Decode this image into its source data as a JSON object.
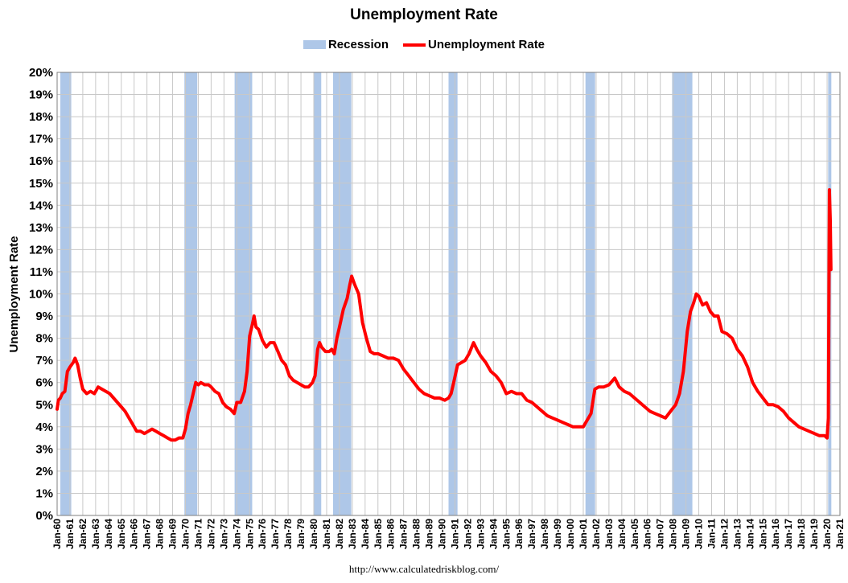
{
  "chart_data": {
    "type": "line",
    "title": "Unemployment Rate",
    "ylabel": "Unemployment Rate",
    "xlabel": "",
    "ylim": [
      0,
      20
    ],
    "y_tick_labels": [
      "0%",
      "1%",
      "2%",
      "3%",
      "4%",
      "5%",
      "6%",
      "7%",
      "8%",
      "9%",
      "10%",
      "11%",
      "12%",
      "13%",
      "14%",
      "15%",
      "16%",
      "17%",
      "18%",
      "19%",
      "20%"
    ],
    "x_range_years": [
      1960,
      2021
    ],
    "x_tick_labels": [
      "Jan-60",
      "Jan-61",
      "Jan-62",
      "Jan-63",
      "Jan-64",
      "Jan-65",
      "Jan-66",
      "Jan-67",
      "Jan-68",
      "Jan-69",
      "Jan-70",
      "Jan-71",
      "Jan-72",
      "Jan-73",
      "Jan-74",
      "Jan-75",
      "Jan-76",
      "Jan-77",
      "Jan-78",
      "Jan-79",
      "Jan-80",
      "Jan-81",
      "Jan-82",
      "Jan-83",
      "Jan-84",
      "Jan-85",
      "Jan-86",
      "Jan-87",
      "Jan-88",
      "Jan-89",
      "Jan-90",
      "Jan-91",
      "Jan-92",
      "Jan-93",
      "Jan-94",
      "Jan-95",
      "Jan-96",
      "Jan-97",
      "Jan-98",
      "Jan-99",
      "Jan-00",
      "Jan-01",
      "Jan-02",
      "Jan-03",
      "Jan-04",
      "Jan-05",
      "Jan-06",
      "Jan-07",
      "Jan-08",
      "Jan-09",
      "Jan-10",
      "Jan-11",
      "Jan-12",
      "Jan-13",
      "Jan-14",
      "Jan-15",
      "Jan-16",
      "Jan-17",
      "Jan-18",
      "Jan-19",
      "Jan-20",
      "Jan-21"
    ],
    "grid": true,
    "legend_position": "top-center",
    "legend": [
      "Recession",
      "Unemployment Rate"
    ],
    "colors": {
      "recession": "#aec7e8",
      "line": "#ff0000",
      "grid": "#c8c8c8",
      "plot_border": "#7f7f7f"
    },
    "recessions": [
      [
        1960.25,
        1961.1
      ],
      [
        1969.92,
        1970.92
      ],
      [
        1973.83,
        1975.2
      ],
      [
        1980.0,
        1980.58
      ],
      [
        1981.5,
        1982.92
      ],
      [
        1990.5,
        1991.2
      ],
      [
        2001.17,
        2001.92
      ],
      [
        2007.92,
        2009.5
      ],
      [
        2020.08,
        2020.33
      ]
    ],
    "series": [
      {
        "name": "Unemployment Rate",
        "x": [
          1960.0,
          1960.1,
          1960.25,
          1960.4,
          1960.6,
          1960.8,
          1961.0,
          1961.25,
          1961.4,
          1961.6,
          1961.8,
          1962.0,
          1962.3,
          1962.6,
          1962.9,
          1963.2,
          1963.5,
          1963.8,
          1964.1,
          1964.4,
          1964.7,
          1965.0,
          1965.3,
          1965.6,
          1965.9,
          1966.2,
          1966.5,
          1966.8,
          1967.1,
          1967.4,
          1967.7,
          1968.0,
          1968.3,
          1968.6,
          1968.9,
          1969.2,
          1969.5,
          1969.8,
          1970.0,
          1970.2,
          1970.4,
          1970.6,
          1970.8,
          1971.0,
          1971.2,
          1971.5,
          1971.8,
          1972.0,
          1972.3,
          1972.6,
          1972.9,
          1973.2,
          1973.5,
          1973.8,
          1974.0,
          1974.3,
          1974.6,
          1974.8,
          1975.0,
          1975.2,
          1975.35,
          1975.5,
          1975.7,
          1976.0,
          1976.3,
          1976.6,
          1976.9,
          1977.2,
          1977.5,
          1977.8,
          1978.1,
          1978.4,
          1978.7,
          1979.0,
          1979.3,
          1979.6,
          1979.9,
          1980.1,
          1980.3,
          1980.45,
          1980.6,
          1980.9,
          1981.2,
          1981.4,
          1981.6,
          1981.8,
          1982.0,
          1982.3,
          1982.6,
          1982.8,
          1982.95,
          1983.2,
          1983.5,
          1983.8,
          1984.1,
          1984.4,
          1984.7,
          1985.0,
          1985.4,
          1985.8,
          1986.2,
          1986.6,
          1987.0,
          1987.4,
          1987.8,
          1988.2,
          1988.6,
          1989.0,
          1989.4,
          1989.8,
          1990.2,
          1990.5,
          1990.7,
          1990.9,
          1991.2,
          1991.5,
          1991.8,
          1992.1,
          1992.45,
          1992.7,
          1993.0,
          1993.4,
          1993.8,
          1994.2,
          1994.6,
          1995.0,
          1995.4,
          1995.8,
          1996.2,
          1996.6,
          1997.0,
          1997.4,
          1997.8,
          1998.2,
          1998.6,
          1999.0,
          1999.4,
          1999.8,
          2000.2,
          2000.6,
          2001.0,
          2001.3,
          2001.6,
          2001.9,
          2002.2,
          2002.6,
          2003.0,
          2003.45,
          2003.8,
          2004.2,
          2004.6,
          2005.0,
          2005.4,
          2005.8,
          2006.2,
          2006.6,
          2007.0,
          2007.4,
          2007.8,
          2008.2,
          2008.5,
          2008.8,
          2009.1,
          2009.35,
          2009.6,
          2009.8,
          2010.0,
          2010.3,
          2010.6,
          2010.9,
          2011.2,
          2011.5,
          2011.8,
          2012.2,
          2012.6,
          2013.0,
          2013.4,
          2013.8,
          2014.2,
          2014.6,
          2015.0,
          2015.4,
          2015.8,
          2016.2,
          2016.6,
          2017.0,
          2017.4,
          2017.8,
          2018.2,
          2018.6,
          2019.0,
          2019.4,
          2019.8,
          2020.0,
          2020.1,
          2020.18,
          2020.25,
          2020.3
        ],
        "y": [
          4.8,
          5.2,
          5.3,
          5.5,
          5.6,
          6.5,
          6.7,
          6.9,
          7.1,
          6.8,
          6.2,
          5.7,
          5.5,
          5.6,
          5.5,
          5.8,
          5.7,
          5.6,
          5.5,
          5.3,
          5.1,
          4.9,
          4.7,
          4.4,
          4.1,
          3.8,
          3.8,
          3.7,
          3.8,
          3.9,
          3.8,
          3.7,
          3.6,
          3.5,
          3.4,
          3.4,
          3.5,
          3.5,
          3.9,
          4.6,
          5.0,
          5.5,
          6.0,
          5.9,
          6.0,
          5.9,
          5.9,
          5.8,
          5.6,
          5.5,
          5.1,
          4.9,
          4.8,
          4.6,
          5.1,
          5.1,
          5.6,
          6.5,
          8.1,
          8.6,
          9.0,
          8.5,
          8.4,
          7.9,
          7.6,
          7.8,
          7.8,
          7.4,
          7.0,
          6.8,
          6.3,
          6.1,
          6.0,
          5.9,
          5.8,
          5.8,
          6.0,
          6.3,
          7.5,
          7.8,
          7.6,
          7.4,
          7.4,
          7.5,
          7.3,
          8.0,
          8.5,
          9.3,
          9.8,
          10.4,
          10.8,
          10.4,
          10.0,
          8.7,
          8.0,
          7.4,
          7.3,
          7.3,
          7.2,
          7.1,
          7.1,
          7.0,
          6.6,
          6.3,
          6.0,
          5.7,
          5.5,
          5.4,
          5.3,
          5.3,
          5.2,
          5.3,
          5.5,
          6.0,
          6.8,
          6.9,
          7.0,
          7.3,
          7.8,
          7.5,
          7.2,
          6.9,
          6.5,
          6.3,
          6.0,
          5.5,
          5.6,
          5.5,
          5.5,
          5.2,
          5.1,
          4.9,
          4.7,
          4.5,
          4.4,
          4.3,
          4.2,
          4.1,
          4.0,
          4.0,
          4.0,
          4.3,
          4.6,
          5.7,
          5.8,
          5.8,
          5.9,
          6.2,
          5.8,
          5.6,
          5.5,
          5.3,
          5.1,
          4.9,
          4.7,
          4.6,
          4.5,
          4.4,
          4.7,
          5.0,
          5.5,
          6.5,
          8.3,
          9.2,
          9.6,
          10.0,
          9.9,
          9.5,
          9.6,
          9.2,
          9.0,
          9.0,
          8.3,
          8.2,
          8.0,
          7.5,
          7.2,
          6.7,
          6.0,
          5.6,
          5.3,
          5.0,
          5.0,
          4.9,
          4.7,
          4.4,
          4.2,
          4.0,
          3.9,
          3.8,
          3.7,
          3.6,
          3.6,
          3.5,
          4.4,
          14.7,
          13.3,
          11.1
        ]
      }
    ]
  },
  "source_url": "http://www.calculatedriskblog.com/"
}
